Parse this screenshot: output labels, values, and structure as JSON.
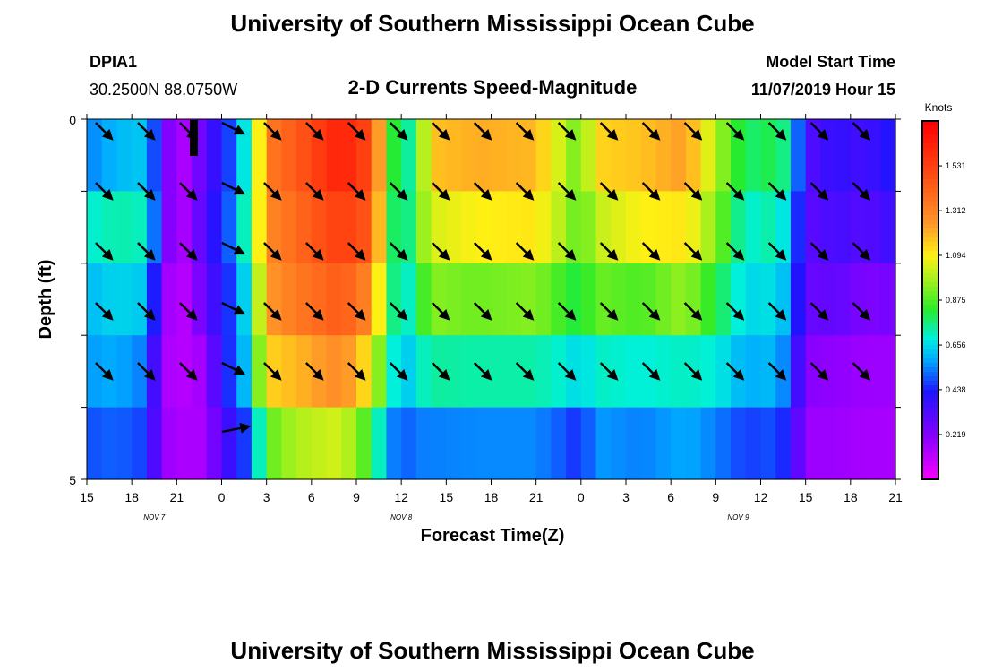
{
  "header": {
    "title": "University of Southern Mississippi Ocean Cube",
    "station_id": "DPIA1",
    "station_coords": "30.2500N 88.0750W",
    "product_title": "2-D Currents Speed-Magnitude",
    "model_start_label": "Model Start Time",
    "model_start_value": "11/07/2019 Hour 15"
  },
  "footer": {
    "title": "University of Southern Mississippi Ocean Cube"
  },
  "chart_data": {
    "type": "heatmap",
    "title": "2-D Currents Speed-Magnitude",
    "xlabel": "Forecast Time(Z)",
    "ylabel": "Depth (ft)",
    "x_tick_labels": [
      "15",
      "18",
      "21",
      "0",
      "3",
      "6",
      "9",
      "12",
      "15",
      "18",
      "21",
      "0",
      "3",
      "6",
      "9",
      "12",
      "15",
      "18",
      "21"
    ],
    "date_labels": [
      {
        "text": "NOV  7",
        "at_tick": 1.5
      },
      {
        "text": "NOV  8",
        "at_tick": 7
      },
      {
        "text": "NOV  9",
        "at_tick": 14.5
      }
    ],
    "y_tick_labels": [
      "0",
      "5"
    ],
    "ylim": [
      0,
      5
    ],
    "depth_levels": 5,
    "hours": 54,
    "colorbar": {
      "unit_label": "Knots",
      "ticks": [
        "0.219",
        "0.438",
        "0.656",
        "0.875",
        "1.094",
        "1.312",
        "1.531"
      ],
      "max": 1.75
    },
    "speed_profile_knots": [
      [
        0,
        0.55,
        0.7,
        0.62,
        0.58,
        0.5,
        0.45
      ],
      [
        2,
        0.62,
        0.74,
        0.66,
        0.6,
        0.52,
        0.46
      ],
      [
        4,
        0.64,
        0.72,
        0.64,
        0.54,
        0.48,
        0.4
      ],
      [
        5,
        0.35,
        0.35,
        0.25,
        0.18,
        0.2,
        0.15
      ],
      [
        6,
        0.1,
        0.1,
        0.08,
        0.12,
        0.15,
        0.12
      ],
      [
        8,
        0.32,
        0.35,
        0.3,
        0.18,
        0.16,
        0.14
      ],
      [
        9,
        0.45,
        0.48,
        0.44,
        0.45,
        0.36,
        0.3
      ],
      [
        10,
        0.52,
        0.55,
        0.5,
        0.48,
        0.4,
        0.32
      ],
      [
        11,
        0.85,
        0.9,
        0.8,
        0.75,
        0.55,
        0.4
      ],
      [
        12,
        1.35,
        1.3,
        1.25,
        1.15,
        0.9,
        0.7
      ],
      [
        14,
        1.45,
        1.4,
        1.35,
        1.2,
        1.0,
        0.8
      ],
      [
        17,
        1.65,
        1.55,
        1.45,
        1.3,
        1.05,
        0.85
      ],
      [
        19,
        1.5,
        1.45,
        1.3,
        1.1,
        0.85,
        0.7
      ],
      [
        20,
        1.0,
        0.95,
        0.9,
        0.8,
        0.6,
        0.55
      ],
      [
        21,
        0.66,
        0.64,
        0.64,
        0.6,
        0.5,
        0.3
      ],
      [
        22,
        0.84,
        0.9,
        0.8,
        0.7,
        0.55,
        0.4
      ],
      [
        23,
        1.18,
        1.05,
        0.95,
        0.75,
        0.55,
        0.42
      ],
      [
        26,
        1.22,
        1.1,
        0.92,
        0.74,
        0.56,
        0.44
      ],
      [
        30,
        1.2,
        1.12,
        0.95,
        0.74,
        0.56,
        0.42
      ],
      [
        32,
        1.0,
        0.98,
        0.85,
        0.7,
        0.5,
        0.4
      ],
      [
        33,
        0.9,
        0.88,
        0.8,
        0.65,
        0.45,
        0.3
      ],
      [
        34,
        1.15,
        1.02,
        0.92,
        0.72,
        0.58,
        0.42
      ],
      [
        37,
        1.18,
        1.1,
        0.88,
        0.7,
        0.55,
        0.4
      ],
      [
        40,
        1.25,
        1.12,
        0.97,
        0.72,
        0.6,
        0.44
      ],
      [
        42,
        1.0,
        0.95,
        0.82,
        0.7,
        0.55,
        0.42
      ],
      [
        44,
        0.78,
        0.7,
        0.66,
        0.6,
        0.48,
        0.38
      ],
      [
        46,
        0.82,
        0.75,
        0.68,
        0.62,
        0.5,
        0.4
      ],
      [
        47,
        0.72,
        0.62,
        0.58,
        0.5,
        0.42,
        0.32
      ],
      [
        48,
        0.32,
        0.3,
        0.28,
        0.22,
        0.18,
        0.15
      ],
      [
        50,
        0.4,
        0.36,
        0.3,
        0.2,
        0.18,
        0.15
      ],
      [
        52,
        0.36,
        0.32,
        0.24,
        0.18,
        0.16,
        0.14
      ],
      [
        54,
        0.45,
        0.38,
        0.26,
        0.18,
        0.16,
        0.14
      ]
    ],
    "vectors": {
      "direction": "toward southeast",
      "count_per_row": 19,
      "rows": 6
    }
  }
}
